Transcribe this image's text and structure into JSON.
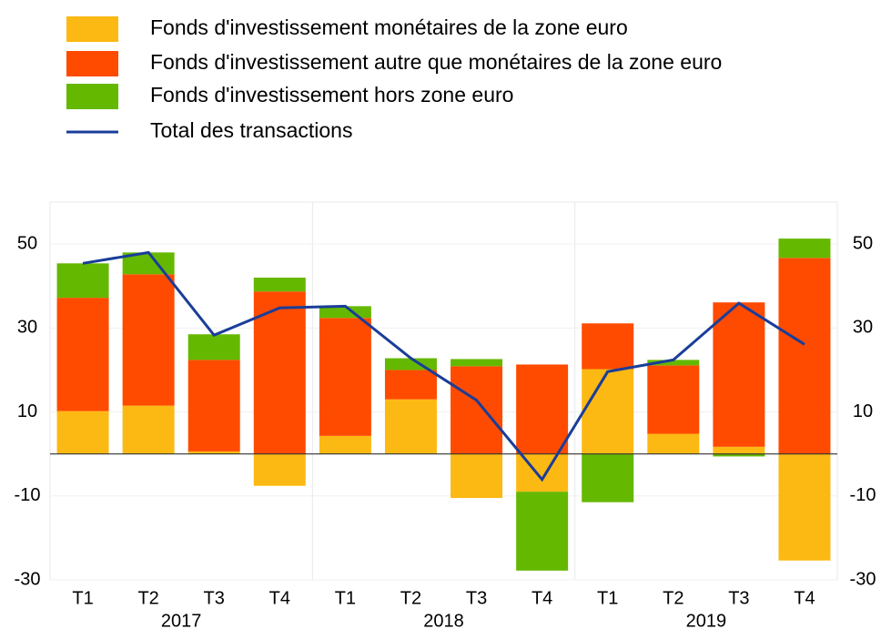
{
  "chart_data": {
    "type": "bar",
    "stacked": true,
    "categories": [
      "T1",
      "T2",
      "T3",
      "T4",
      "T1",
      "T2",
      "T3",
      "T4",
      "T1",
      "T2",
      "T3",
      "T4"
    ],
    "years": [
      "2017",
      "2018",
      "2019"
    ],
    "series": [
      {
        "name": "Fonds d'investissement monétaires de la zone euro",
        "color": "#fdb913",
        "values": [
          10.2,
          11.5,
          0.6,
          -7.6,
          4.3,
          13,
          -10.5,
          -9,
          20.2,
          4.8,
          1.7,
          -25.4
        ]
      },
      {
        "name": "Fonds d'investissement autre que monétaires de la zone euro",
        "color": "#ff4b00",
        "values": [
          27,
          31.3,
          21.8,
          38.7,
          28.1,
          7,
          20.9,
          21.3,
          10.9,
          16.3,
          34.4,
          46.7
        ]
      },
      {
        "name": "Fonds d'investissement hors zone euro",
        "color": "#65b800",
        "values": [
          8.2,
          5.2,
          6.1,
          3.3,
          2.8,
          2.8,
          1.7,
          -18.8,
          -11.5,
          1.3,
          -0.6,
          4.6
        ]
      },
      {
        "name": "Total des transactions",
        "color": "#1a3d99",
        "type": "line",
        "values": [
          45.4,
          48,
          28.3,
          34.8,
          35.2,
          22.8,
          12.8,
          -6.1,
          19.6,
          22.4,
          35.9,
          26.1
        ]
      }
    ],
    "ylim": [
      -30,
      60
    ],
    "yticks": [
      -30,
      -10,
      10,
      30,
      50
    ],
    "right_axis": true
  }
}
